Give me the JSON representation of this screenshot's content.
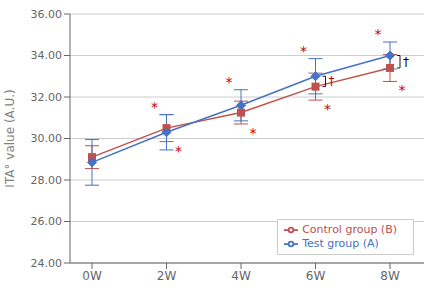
{
  "chart_data": {
    "type": "line",
    "ylabel": "ITA° value (A.U.)",
    "categories": [
      "0W",
      "2W",
      "4W",
      "6W",
      "8W"
    ],
    "series": [
      {
        "name": "Control group (B)",
        "color": "#C0504D",
        "marker": "square",
        "values": [
          29.1,
          30.5,
          31.25,
          32.5,
          33.4
        ],
        "errors": [
          0.55,
          0.65,
          0.55,
          0.65,
          0.65
        ]
      },
      {
        "name": "Test group (A)",
        "color": "#4472C4",
        "marker": "diamond",
        "values": [
          28.85,
          30.3,
          31.6,
          33.0,
          34.0
        ],
        "errors": [
          1.1,
          0.85,
          0.75,
          0.85,
          0.65
        ]
      }
    ],
    "ylim": [
      24.0,
      36.0
    ],
    "yticks": [
      {
        "value": 24.0,
        "label": "24.00"
      },
      {
        "value": 26.0,
        "label": "26.00"
      },
      {
        "value": 28.0,
        "label": "28.00"
      },
      {
        "value": 30.0,
        "label": "30.00"
      },
      {
        "value": 32.0,
        "label": "32.00"
      },
      {
        "value": 34.0,
        "label": "34.00"
      },
      {
        "value": 36.0,
        "label": "36.00"
      }
    ],
    "grid": true,
    "legend": "lower right",
    "annotations": [
      {
        "text": "*",
        "category": "2W",
        "series": "Test group (A)",
        "position": "above",
        "color": "#CC0000"
      },
      {
        "text": "*",
        "category": "2W",
        "series": "Control group (B)",
        "position": "below",
        "color": "#CC0000"
      },
      {
        "text": "*",
        "category": "4W",
        "series": "Test group (A)",
        "position": "above",
        "color": "#CC0000"
      },
      {
        "text": "*",
        "category": "4W",
        "series": "Control group (B)",
        "position": "below",
        "color": "#CC0000"
      },
      {
        "text": "*",
        "category": "6W",
        "series": "Test group (A)",
        "position": "above",
        "color": "#CC0000"
      },
      {
        "text": "*",
        "category": "6W",
        "series": "Control group (B)",
        "position": "below",
        "color": "#CC0000"
      },
      {
        "text": "*",
        "category": "8W",
        "series": "Test group (A)",
        "position": "above",
        "color": "#CC0000"
      },
      {
        "text": "*",
        "category": "8W",
        "series": "Control group (B)",
        "position": "below",
        "color": "#CC0000"
      },
      {
        "type": "bracket",
        "text": "†",
        "category": "6W",
        "color": "#CC0000"
      },
      {
        "type": "bracket",
        "text": "†",
        "category": "8W",
        "color": "#000000"
      }
    ]
  }
}
